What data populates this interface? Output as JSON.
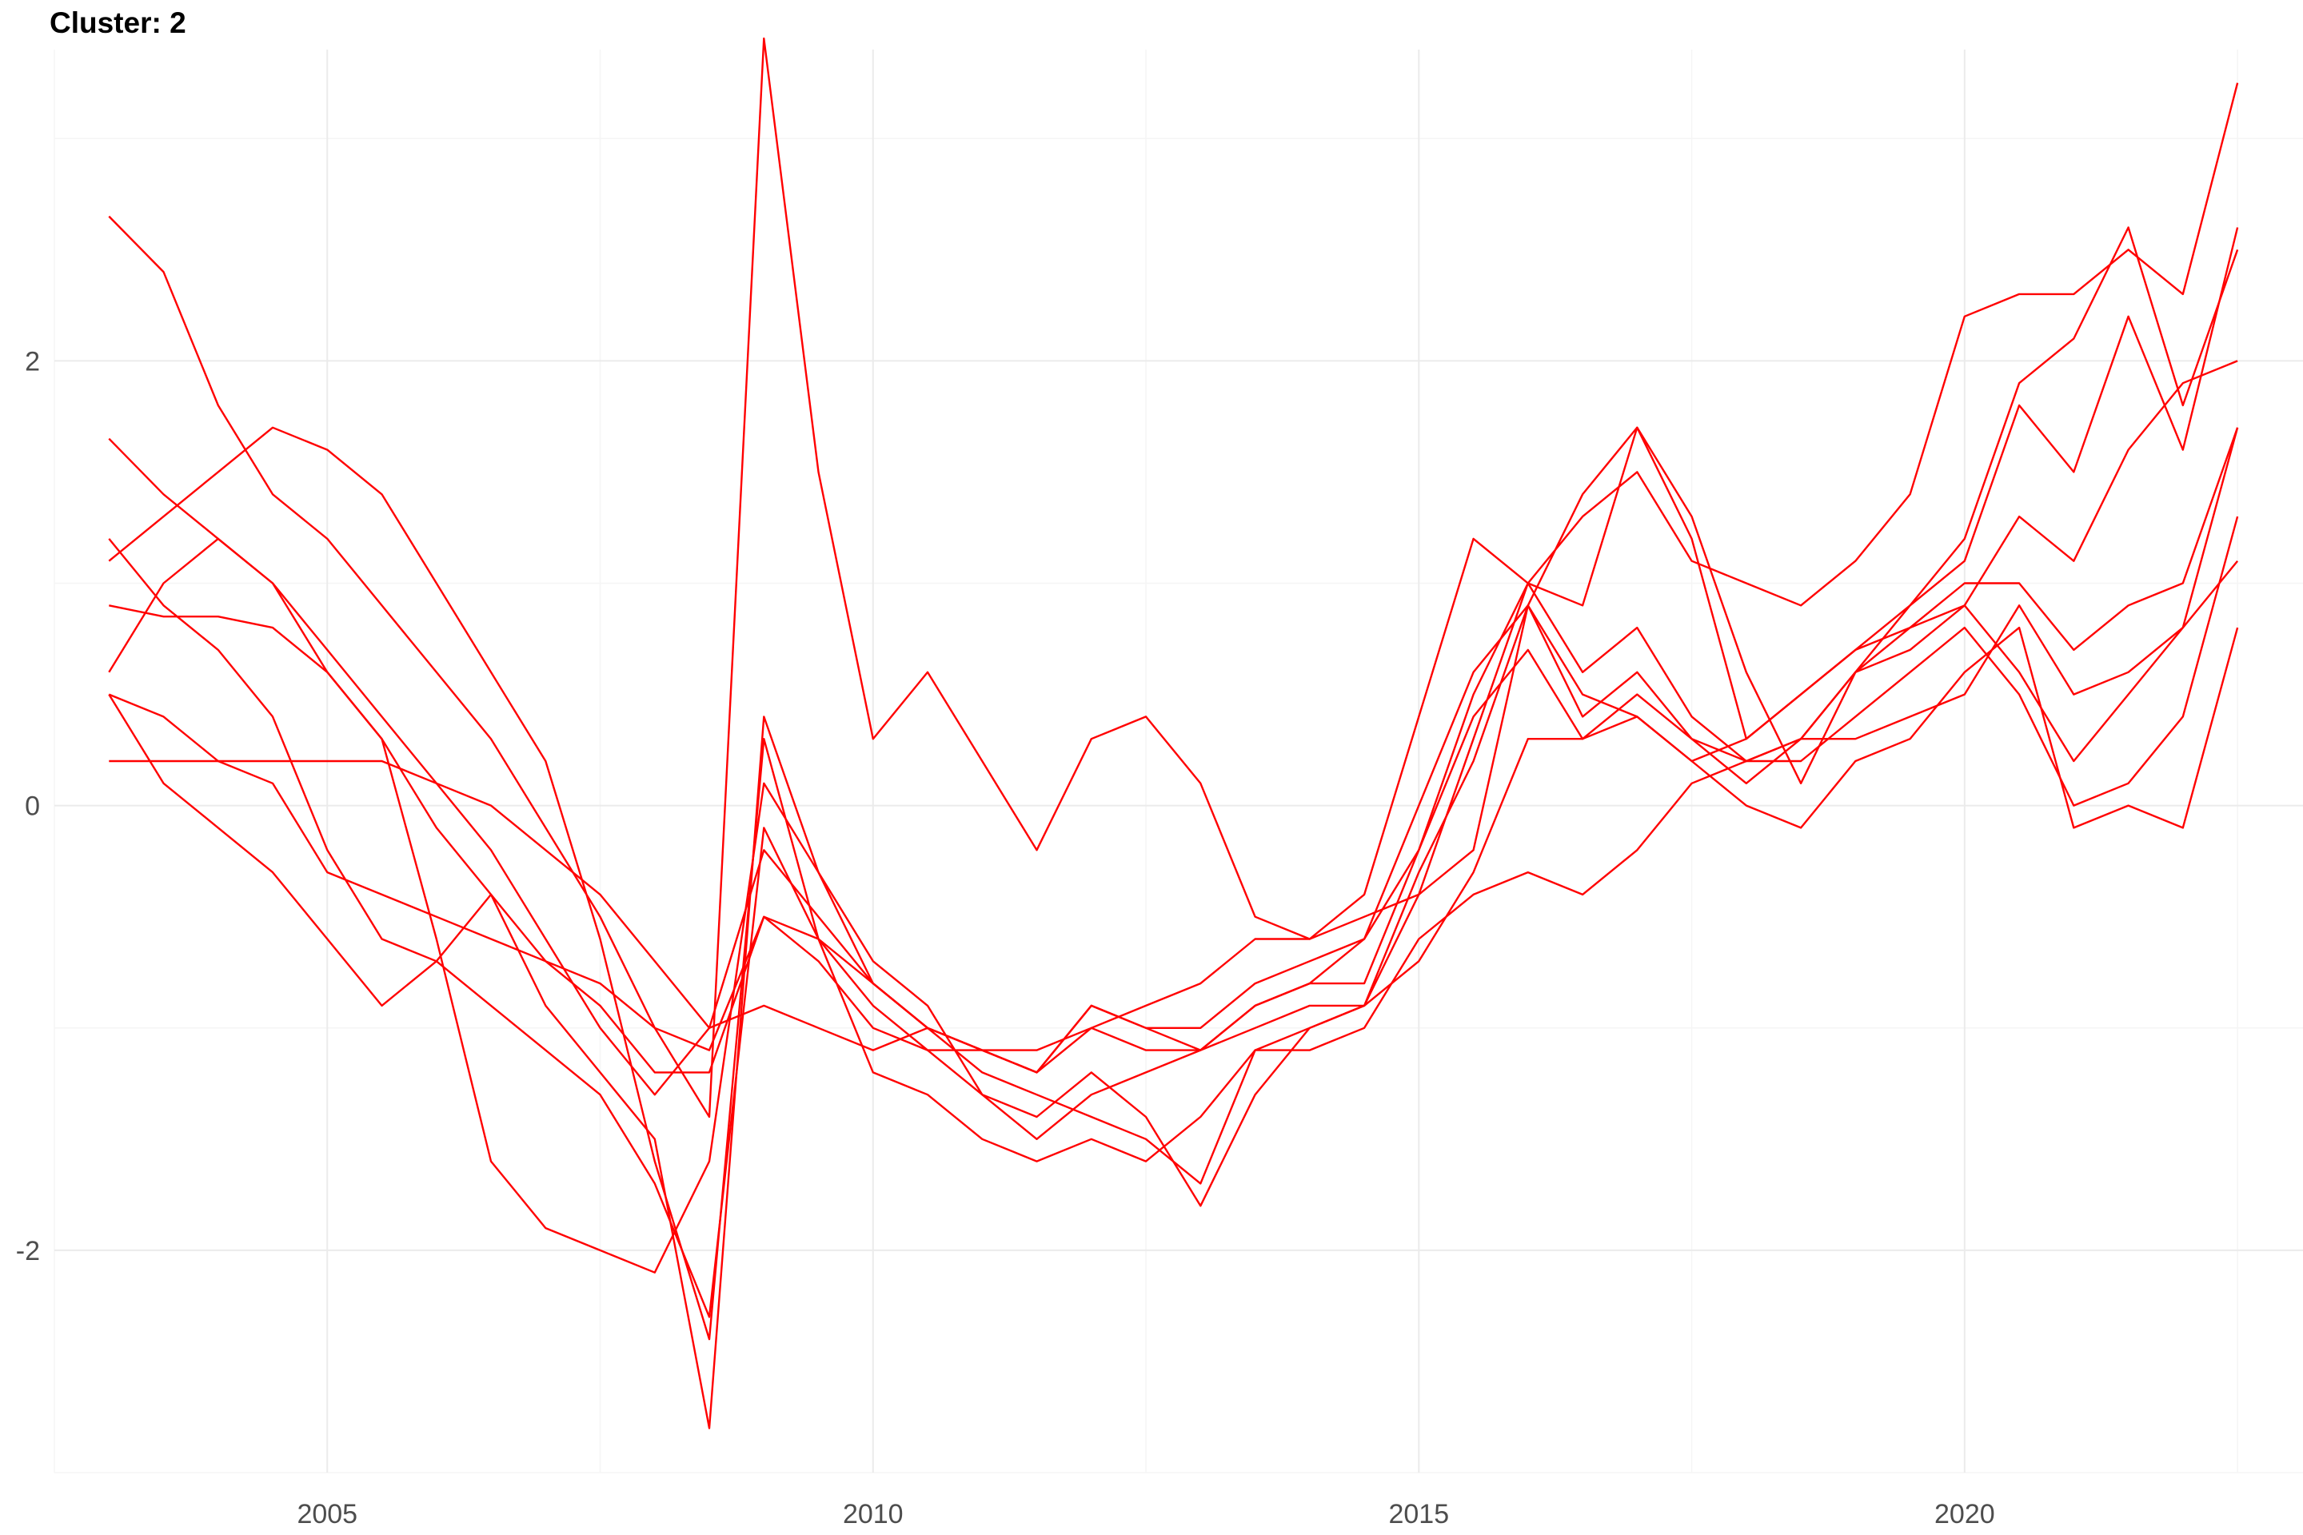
{
  "chart_data": {
    "type": "line",
    "title": "Cluster: 2",
    "xlabel": "",
    "ylabel": "",
    "xlim": [
      2002.5,
      2023.1
    ],
    "ylim": [
      -3.0,
      3.4
    ],
    "x_ticks": [
      2005,
      2010,
      2015,
      2020
    ],
    "y_ticks": [
      -2,
      0,
      2
    ],
    "x_tick_labels": [
      "2005",
      "2010",
      "2015",
      "2020"
    ],
    "y_tick_labels": [
      "-2",
      "0",
      "2"
    ],
    "grid": true,
    "legend": "none",
    "color": "#ff0000",
    "series": [
      {
        "x": [
          2003.0,
          2003.5,
          2004.0,
          2004.5,
          2005.0,
          2005.5,
          2006.0,
          2006.5,
          2007.0,
          2007.5,
          2008.0,
          2008.5,
          2009.0,
          2009.5,
          2010.0,
          2010.5,
          2011.0,
          2011.5,
          2012.0,
          2012.5,
          2013.0,
          2013.5,
          2014.0,
          2014.5,
          2015.0,
          2015.5,
          2016.0,
          2016.5,
          2017.0,
          2017.5,
          2018.0,
          2018.5,
          2019.0,
          2019.5,
          2020.0,
          2020.5,
          2021.0,
          2021.5,
          2022.0,
          2022.5
        ],
        "y": [
          2.65,
          2.4,
          1.8,
          1.4,
          1.2,
          0.9,
          0.6,
          0.3,
          -0.1,
          -0.5,
          -1.0,
          -1.4,
          3.45,
          1.5,
          0.3,
          0.6,
          0.2,
          -0.2,
          0.3,
          0.4,
          0.1,
          -0.5,
          -0.6,
          -0.4,
          0.4,
          1.2,
          1.0,
          1.3,
          1.5,
          1.1,
          1.0,
          0.9,
          1.1,
          1.4,
          2.2,
          2.3,
          2.3,
          2.5,
          2.3,
          3.25
        ]
      },
      {
        "x": [
          2003.0,
          2003.5,
          2004.0,
          2004.5,
          2005.0,
          2005.5,
          2006.0,
          2006.5,
          2007.0,
          2007.5,
          2008.0,
          2008.5,
          2009.0,
          2009.5,
          2010.0,
          2010.5,
          2011.0,
          2011.5,
          2012.0,
          2012.5,
          2013.0,
          2013.5,
          2014.0,
          2014.5,
          2015.0,
          2015.5,
          2016.0,
          2016.5,
          2017.0,
          2017.5,
          2018.0,
          2018.5,
          2019.0,
          2019.5,
          2020.0,
          2020.5,
          2021.0,
          2021.5,
          2022.0,
          2022.5
        ],
        "y": [
          1.65,
          1.4,
          1.2,
          1.0,
          0.6,
          0.3,
          -0.6,
          -1.6,
          -1.9,
          -2.0,
          -2.1,
          -1.6,
          0.1,
          -0.3,
          -0.8,
          -1.0,
          -1.2,
          -1.3,
          -1.4,
          -1.5,
          -1.7,
          -1.1,
          -1.0,
          -0.9,
          -0.3,
          0.2,
          0.9,
          1.4,
          1.7,
          1.2,
          0.3,
          0.5,
          0.7,
          0.9,
          1.2,
          1.9,
          2.1,
          2.6,
          1.8,
          2.5
        ]
      },
      {
        "x": [
          2003.0,
          2003.5,
          2004.0,
          2004.5,
          2005.0,
          2005.5,
          2006.0,
          2006.5,
          2007.0,
          2007.5,
          2008.0,
          2008.5,
          2009.0,
          2009.5,
          2010.0,
          2010.5,
          2011.0,
          2011.5,
          2012.0,
          2012.5,
          2013.0,
          2013.5,
          2014.0,
          2014.5,
          2015.0,
          2015.5,
          2016.0,
          2016.5,
          2017.0,
          2017.5,
          2018.0,
          2018.5,
          2019.0,
          2019.5,
          2020.0,
          2020.5,
          2021.0,
          2021.5,
          2022.0,
          2022.5
        ],
        "y": [
          1.1,
          1.3,
          1.5,
          1.7,
          1.6,
          1.4,
          1.0,
          0.6,
          0.2,
          -0.6,
          -1.6,
          -2.4,
          0.3,
          -0.6,
          -0.9,
          -1.1,
          -1.3,
          -1.4,
          -1.2,
          -1.4,
          -1.8,
          -1.3,
          -1.0,
          -0.9,
          -0.4,
          0.3,
          1.0,
          0.9,
          1.7,
          1.3,
          0.6,
          0.1,
          0.6,
          0.9,
          1.1,
          1.8,
          1.5,
          2.2,
          1.6,
          2.6
        ]
      },
      {
        "x": [
          2003.0,
          2003.5,
          2004.0,
          2004.5,
          2005.0,
          2005.5,
          2006.0,
          2006.5,
          2007.0,
          2007.5,
          2008.0,
          2008.5,
          2009.0,
          2009.5,
          2010.0,
          2010.5,
          2011.0,
          2011.5,
          2012.0,
          2012.5,
          2013.0,
          2013.5,
          2014.0,
          2014.5,
          2015.0,
          2015.5,
          2016.0,
          2016.5,
          2017.0,
          2017.5,
          2018.0,
          2018.5,
          2019.0,
          2019.5,
          2020.0,
          2020.5,
          2021.0,
          2021.5,
          2022.0,
          2022.5
        ],
        "y": [
          0.6,
          1.0,
          1.2,
          1.0,
          0.7,
          0.4,
          0.1,
          -0.2,
          -0.6,
          -1.0,
          -1.3,
          -1.0,
          -0.2,
          -0.5,
          -0.8,
          -1.0,
          -1.1,
          -1.2,
          -0.9,
          -1.0,
          -1.1,
          -0.9,
          -0.8,
          -0.8,
          -0.2,
          0.5,
          1.0,
          0.6,
          0.8,
          0.4,
          0.2,
          0.3,
          0.6,
          0.7,
          0.9,
          1.3,
          1.1,
          1.6,
          1.9,
          2.0
        ]
      },
      {
        "x": [
          2003.0,
          2003.5,
          2004.0,
          2004.5,
          2005.0,
          2005.5,
          2006.0,
          2006.5,
          2007.0,
          2007.5,
          2008.0,
          2008.5,
          2009.0,
          2009.5,
          2010.0,
          2010.5,
          2011.0,
          2011.5,
          2012.0,
          2012.5,
          2013.0,
          2013.5,
          2014.0,
          2014.5,
          2015.0,
          2015.5,
          2016.0,
          2016.5,
          2017.0,
          2017.5,
          2018.0,
          2018.5,
          2019.0,
          2019.5,
          2020.0,
          2020.5,
          2021.0,
          2021.5,
          2022.0,
          2022.5
        ],
        "y": [
          0.9,
          0.85,
          0.85,
          0.8,
          0.6,
          0.3,
          -0.1,
          -0.4,
          -0.7,
          -0.9,
          -1.2,
          -1.2,
          -0.5,
          -0.7,
          -1.0,
          -1.1,
          -1.1,
          -1.2,
          -0.9,
          -1.0,
          -1.0,
          -0.8,
          -0.7,
          -0.6,
          0.0,
          0.6,
          0.9,
          0.4,
          0.6,
          0.3,
          0.1,
          0.3,
          0.6,
          0.8,
          1.0,
          1.0,
          0.7,
          0.9,
          1.0,
          1.7
        ]
      },
      {
        "x": [
          2003.0,
          2003.5,
          2004.0,
          2004.5,
          2005.0,
          2005.5,
          2006.0,
          2006.5,
          2007.0,
          2007.5,
          2008.0,
          2008.5,
          2009.0,
          2009.5,
          2010.0,
          2010.5,
          2011.0,
          2011.5,
          2012.0,
          2012.5,
          2013.0,
          2013.5,
          2014.0,
          2014.5,
          2015.0,
          2015.5,
          2016.0,
          2016.5,
          2017.0,
          2017.5,
          2018.0,
          2018.5,
          2019.0,
          2019.5,
          2020.0,
          2020.5,
          2021.0,
          2021.5,
          2022.0,
          2022.5
        ],
        "y": [
          0.2,
          0.2,
          0.2,
          0.2,
          0.2,
          0.2,
          0.1,
          0.0,
          -0.2,
          -0.4,
          -0.7,
          -1.0,
          -0.9,
          -1.0,
          -1.1,
          -1.0,
          -1.1,
          -1.1,
          -1.0,
          -0.9,
          -0.8,
          -0.6,
          -0.6,
          -0.5,
          -0.4,
          -0.2,
          0.9,
          0.5,
          0.4,
          0.2,
          0.3,
          0.5,
          0.7,
          0.8,
          0.9,
          0.6,
          0.2,
          0.5,
          0.8,
          1.7
        ]
      },
      {
        "x": [
          2003.0,
          2003.5,
          2004.0,
          2004.5,
          2005.0,
          2005.5,
          2006.0,
          2006.5,
          2007.0,
          2007.5,
          2008.0,
          2008.5,
          2009.0,
          2009.5,
          2010.0,
          2010.5,
          2011.0,
          2011.5,
          2012.0,
          2012.5,
          2013.0,
          2013.5,
          2014.0,
          2014.5,
          2015.0,
          2015.5,
          2016.0,
          2016.5,
          2017.0,
          2017.5,
          2018.0,
          2018.5,
          2019.0,
          2019.5,
          2020.0,
          2020.5,
          2021.0,
          2021.5,
          2022.0,
          2022.5
        ],
        "y": [
          0.5,
          0.4,
          0.2,
          0.1,
          -0.3,
          -0.4,
          -0.5,
          -0.6,
          -0.7,
          -0.8,
          -1.0,
          -1.1,
          -0.5,
          -0.6,
          -0.8,
          -1.0,
          -1.1,
          -1.2,
          -1.0,
          -1.1,
          -1.1,
          -0.9,
          -0.8,
          -0.6,
          -0.2,
          0.4,
          0.7,
          0.3,
          0.5,
          0.3,
          0.2,
          0.2,
          0.4,
          0.6,
          0.8,
          0.5,
          0.0,
          0.1,
          0.4,
          1.3
        ]
      },
      {
        "x": [
          2003.0,
          2003.5,
          2004.0,
          2004.5,
          2005.0,
          2005.5,
          2006.0,
          2006.5,
          2007.0,
          2007.5,
          2008.0,
          2008.5,
          2009.0,
          2009.5,
          2010.0,
          2010.5,
          2011.0,
          2011.5,
          2012.0,
          2012.5,
          2013.0,
          2013.5,
          2014.0,
          2014.5,
          2015.0,
          2015.5,
          2016.0,
          2016.5,
          2017.0,
          2017.5,
          2018.0,
          2018.5,
          2019.0,
          2019.5,
          2020.0,
          2020.5,
          2021.0,
          2021.5,
          2022.0,
          2022.5
        ],
        "y": [
          1.2,
          0.9,
          0.7,
          0.4,
          -0.2,
          -0.6,
          -0.7,
          -0.9,
          -1.1,
          -1.3,
          -1.7,
          -2.3,
          -0.1,
          -0.6,
          -1.2,
          -1.3,
          -1.5,
          -1.6,
          -1.5,
          -1.6,
          -1.4,
          -1.1,
          -1.1,
          -1.0,
          -0.6,
          -0.4,
          -0.3,
          -0.4,
          -0.2,
          0.1,
          0.2,
          0.3,
          0.3,
          0.4,
          0.5,
          0.9,
          0.5,
          0.6,
          0.8,
          1.1
        ]
      },
      {
        "x": [
          2003.0,
          2003.5,
          2004.0,
          2004.5,
          2005.0,
          2005.5,
          2006.0,
          2006.5,
          2007.0,
          2007.5,
          2008.0,
          2008.5,
          2009.0,
          2009.5,
          2010.0,
          2010.5,
          2011.0,
          2011.5,
          2012.0,
          2012.5,
          2013.0,
          2013.5,
          2014.0,
          2014.5,
          2015.0,
          2015.5,
          2016.0,
          2016.5,
          2017.0,
          2017.5,
          2018.0,
          2018.5,
          2019.0,
          2019.5,
          2020.0,
          2020.5,
          2021.0,
          2021.5,
          2022.0,
          2022.5
        ],
        "y": [
          0.5,
          0.1,
          -0.1,
          -0.3,
          -0.6,
          -0.9,
          -0.7,
          -0.4,
          -0.9,
          -1.2,
          -1.5,
          -2.8,
          0.4,
          -0.3,
          -0.7,
          -0.9,
          -1.3,
          -1.5,
          -1.3,
          -1.2,
          -1.1,
          -1.0,
          -0.9,
          -0.9,
          -0.7,
          -0.3,
          0.3,
          0.3,
          0.4,
          0.2,
          0.0,
          -0.1,
          0.2,
          0.3,
          0.6,
          0.8,
          -0.1,
          0.0,
          -0.1,
          0.8
        ]
      }
    ]
  }
}
